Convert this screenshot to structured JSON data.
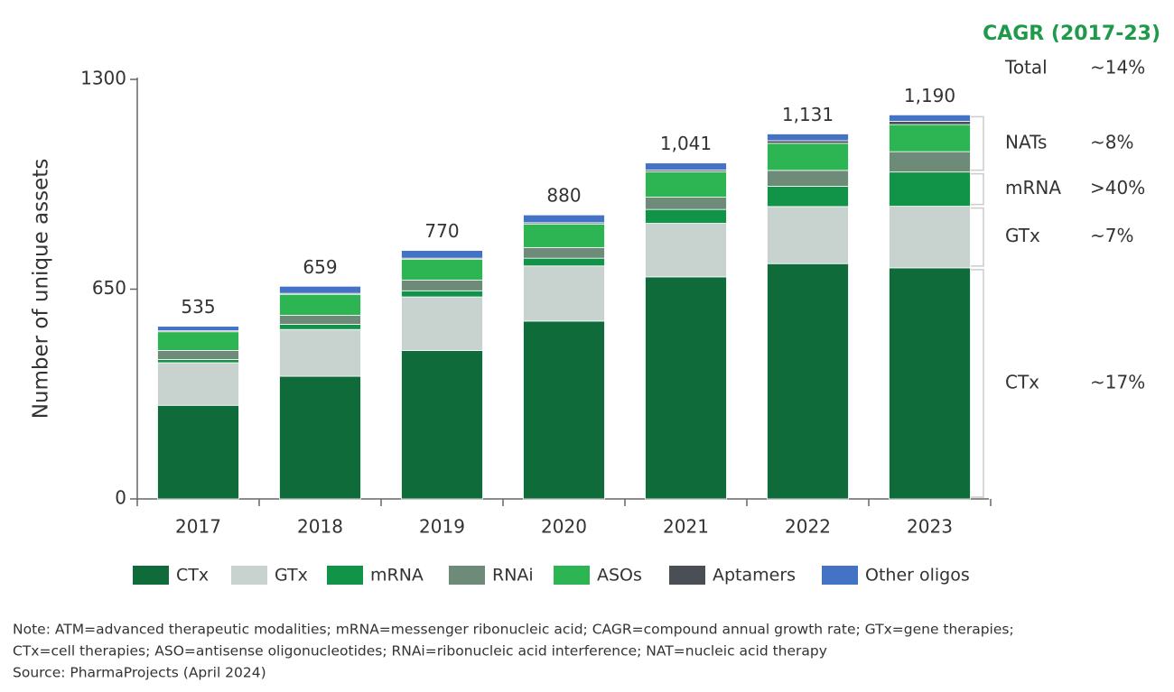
{
  "chart_data": {
    "type": "stacked_bar",
    "ylabel": "Number of unique assets",
    "categories": [
      "2017",
      "2018",
      "2019",
      "2020",
      "2021",
      "2022",
      "2023"
    ],
    "series": [
      {
        "name": "CTx",
        "color": "#0f6b3a",
        "values": [
          290,
          380,
          460,
          551,
          688,
          729,
          716
        ]
      },
      {
        "name": "GTx",
        "color": "#c8d3cf",
        "values": [
          132,
          145,
          166,
          171,
          166,
          177,
          191
        ]
      },
      {
        "name": "mRNA",
        "color": "#119447",
        "values": [
          10,
          16,
          19,
          24,
          43,
          63,
          106
        ]
      },
      {
        "name": "RNAi",
        "color": "#6e8b7a",
        "values": [
          28,
          28,
          33,
          33,
          38,
          49,
          63
        ]
      },
      {
        "name": "ASOs",
        "color": "#2db554",
        "values": [
          58,
          65,
          65,
          73,
          79,
          84,
          84
        ]
      },
      {
        "name": "Aptamers",
        "color": "#4a4f55",
        "values": [
          3,
          3,
          3,
          4,
          5,
          8,
          10
        ]
      },
      {
        "name": "Other oligos",
        "color": "#4472c4",
        "values": [
          14,
          22,
          24,
          24,
          22,
          21,
          20
        ]
      }
    ],
    "totals": [
      535,
      659,
      770,
      880,
      1041,
      1131,
      1190
    ],
    "total_labels": [
      "535",
      "659",
      "770",
      "880",
      "1,041",
      "1,131",
      "1,190"
    ],
    "ylim": [
      0,
      1300
    ],
    "yticks": [
      0,
      650,
      1300
    ],
    "cagr": {
      "title": "CAGR (2017-23)",
      "rows": [
        {
          "label": "Total",
          "value": "~14%"
        },
        {
          "label": "NATs",
          "value": "~8%"
        },
        {
          "label": "mRNA",
          "value": ">40%"
        },
        {
          "label": "GTx",
          "value": "~7%"
        },
        {
          "label": "CTx",
          "value": "~17%"
        }
      ]
    },
    "notes": [
      "Note: ATM=advanced therapeutic modalities; mRNA=messenger ribonucleic acid; CAGR=compound annual growth rate; GTx=gene therapies;",
      "CTx=cell therapies; ASO=antisense oligonucleotides; RNAi=ribonucleic acid interference; NAT=nucleic acid therapy",
      "Source: PharmaProjects (April 2024)"
    ]
  }
}
